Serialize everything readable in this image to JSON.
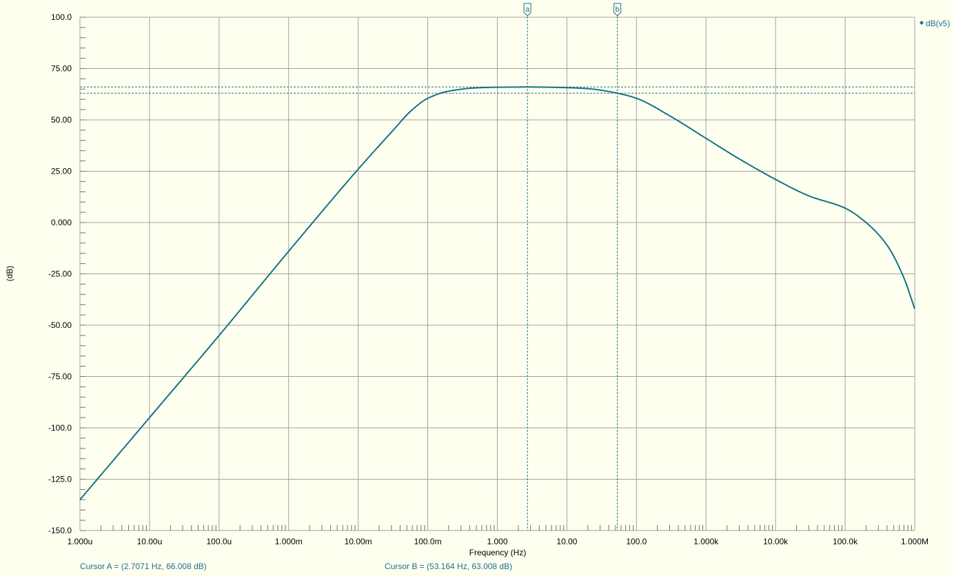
{
  "colors": {
    "background": "#fffff0",
    "grid": "#a0a0a0",
    "trace": "#137287",
    "cursor": "#1a6f8c"
  },
  "chart_data": {
    "type": "line",
    "xlabel": "Frequency (Hz)",
    "ylabel": "(dB)",
    "xscale": "log",
    "xlim": [
      1e-06,
      1000000.0
    ],
    "ylim": [
      -150,
      100
    ],
    "grid": true,
    "legend_position": "top-right",
    "x_tick_values": [
      1e-06,
      1e-05,
      0.0001,
      0.001,
      0.01,
      0.1,
      1,
      10,
      100,
      1000,
      10000,
      100000,
      1000000
    ],
    "x_tick_labels": [
      "1.000u",
      "10.00u",
      "100.0u",
      "1.000m",
      "10.00m",
      "100.0m",
      "1.000",
      "10.00",
      "100.0",
      "1.000k",
      "10.00k",
      "100.0k",
      "1.000M"
    ],
    "y_tick_values": [
      100,
      75,
      50,
      25,
      0,
      -25,
      -50,
      -75,
      -100,
      -125,
      -150
    ],
    "y_tick_labels": [
      "100.0",
      "75.00",
      "50.00",
      "25.00",
      "0.000",
      "-25.00",
      "-50.00",
      "-75.00",
      "-100.0",
      "-125.0",
      "-150.0"
    ],
    "series": [
      {
        "name": "dB(v5)",
        "x": [
          1e-06,
          1e-05,
          0.0001,
          0.001,
          0.01,
          0.03,
          0.06,
          0.1,
          0.2,
          0.5,
          1,
          2.7071,
          10,
          20,
          53.164,
          100,
          300,
          1000,
          3000,
          10000,
          30000,
          100000,
          200000,
          400000,
          700000,
          1000000
        ],
        "y": [
          -135,
          -95,
          -55,
          -14,
          26,
          44,
          55,
          60.5,
          64,
          65.6,
          65.9,
          66.008,
          65.7,
          65.2,
          63.008,
          60.5,
          52,
          41,
          31,
          21,
          13,
          7,
          0,
          -11,
          -27,
          -42
        ]
      }
    ],
    "cursors": [
      {
        "label": "a",
        "x": 2.7071,
        "y": 66.008,
        "readout": "Cursor A = (2.7071 Hz, 66.008 dB)"
      },
      {
        "label": "b",
        "x": 53.164,
        "y": 63.008,
        "readout": "Cursor B = (53.164 Hz, 63.008 dB)"
      }
    ]
  }
}
